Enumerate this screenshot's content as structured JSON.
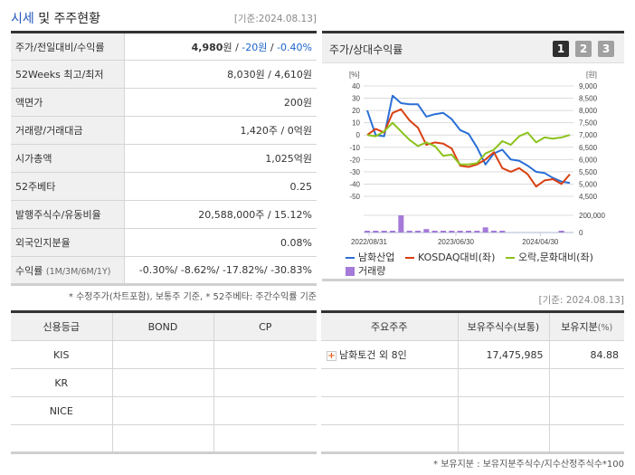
{
  "header": {
    "title_highlight": "시세",
    "title_rest": " 및 주주현황",
    "date": "[기준:2024.08.13]"
  },
  "price_table": [
    {
      "label": "주가/전일대비/수익률",
      "value_main": "4,980",
      "value_unit": "원",
      "value_sep": " / ",
      "change": "-20원",
      "sep2": " / ",
      "rate": "-0.40%"
    },
    {
      "label": "52Weeks 최고/최저",
      "value": "8,030원 / 4,610원"
    },
    {
      "label": "액면가",
      "value": "200원"
    },
    {
      "label": "거래량/거래대금",
      "value": "1,420주 / 0억원"
    },
    {
      "label": "시가총액",
      "value": "1,025억원"
    },
    {
      "label": "52주베타",
      "value": "0.25"
    },
    {
      "label": "발행주식수/유동비율",
      "value": "20,588,000주 / 15.12%"
    },
    {
      "label": "외국인지분율",
      "value": "0.08%"
    },
    {
      "label": "수익률",
      "label_sub": "(1M/3M/6M/1Y)",
      "value": "-0.30%/ -8.62%/ -17.82%/ -30.83%"
    }
  ],
  "note1": "* 수정주가(차트포함), 보통주 기준, * 52주베타: 주간수익률 기준",
  "chart_panel": {
    "title": "주가/상대수익률",
    "tabs": [
      "1",
      "2",
      "3"
    ],
    "active_tab": 0
  },
  "chart_data": {
    "type": "line",
    "title": "주가/상대수익률",
    "left_axis_label": "[%]",
    "right_axis_label": "[원]",
    "left_ticks": [
      40,
      30,
      20,
      10,
      0,
      -10,
      -20,
      -30,
      -40,
      -50
    ],
    "right_ticks": [
      "9,000",
      "8,500",
      "8,000",
      "7,500",
      "7,000",
      "6,500",
      "6,000",
      "5,500",
      "5,000",
      "4,500"
    ],
    "volume_ticks": [
      "200,000",
      "0"
    ],
    "x_labels": [
      "2022/08/31",
      "2023/06/30",
      "2024/04/30"
    ],
    "ylim": [
      -50,
      40
    ],
    "series": [
      {
        "name": "남화산업",
        "color": "#2a6fd6",
        "values": [
          20,
          0,
          -1,
          32,
          26,
          25,
          25,
          15,
          17,
          18,
          13,
          4,
          1,
          -10,
          -24,
          -15,
          -12,
          -20,
          -21,
          -25,
          -30,
          -31,
          -35,
          -38,
          -39
        ]
      },
      {
        "name": "KOSDAQ대비(좌)",
        "color": "#d94012",
        "values": [
          0,
          5,
          2,
          18,
          21,
          12,
          6,
          -8,
          -6,
          -7,
          -11,
          -25,
          -26,
          -24,
          -20,
          -14,
          -27,
          -30,
          -27,
          -32,
          -42,
          -37,
          -36,
          -40,
          -32
        ]
      },
      {
        "name": "오락,문화대비(좌)",
        "color": "#8cc21c",
        "values": [
          0,
          -1,
          3,
          10,
          3,
          -4,
          -9,
          -6,
          -9,
          -17,
          -16,
          -24,
          -24,
          -23,
          -15,
          -12,
          -5,
          -8,
          -1,
          2,
          -6,
          -2,
          -3,
          -2,
          0
        ]
      }
    ],
    "volume": {
      "name": "거래량",
      "color": "#a57ad8",
      "values": [
        8000,
        4000,
        4000,
        4000,
        200000,
        8000,
        10000,
        40000,
        5000,
        8000,
        4000,
        4000,
        4000,
        4000,
        60000,
        10000,
        8000,
        0,
        0,
        0,
        0,
        0,
        0,
        4000,
        0
      ]
    },
    "legend": [
      "남화산업",
      "KOSDAQ대비(좌)",
      "오락,문화대비(좌)",
      "거래량"
    ]
  },
  "date2": "[기준: 2024.08.13]",
  "credit_table": {
    "headers": [
      "신용등급",
      "BOND",
      "CP"
    ],
    "rows": [
      [
        "KIS",
        "",
        ""
      ],
      [
        "KR",
        "",
        ""
      ],
      [
        "NICE",
        "",
        ""
      ],
      [
        "",
        "",
        ""
      ]
    ]
  },
  "holders_table": {
    "headers": [
      "주요주주",
      "보유주식수(보통)",
      "보유지분",
      "(%)"
    ],
    "rows": [
      {
        "name": "남화토건 외 8인",
        "shares": "17,475,985",
        "ratio": "84.88"
      },
      {
        "name": "",
        "shares": "",
        "ratio": ""
      },
      {
        "name": "",
        "shares": "",
        "ratio": ""
      },
      {
        "name": "",
        "shares": "",
        "ratio": ""
      }
    ]
  },
  "note2": "* 보유지분 : 보유지분주식수/지수산정주식수*100"
}
